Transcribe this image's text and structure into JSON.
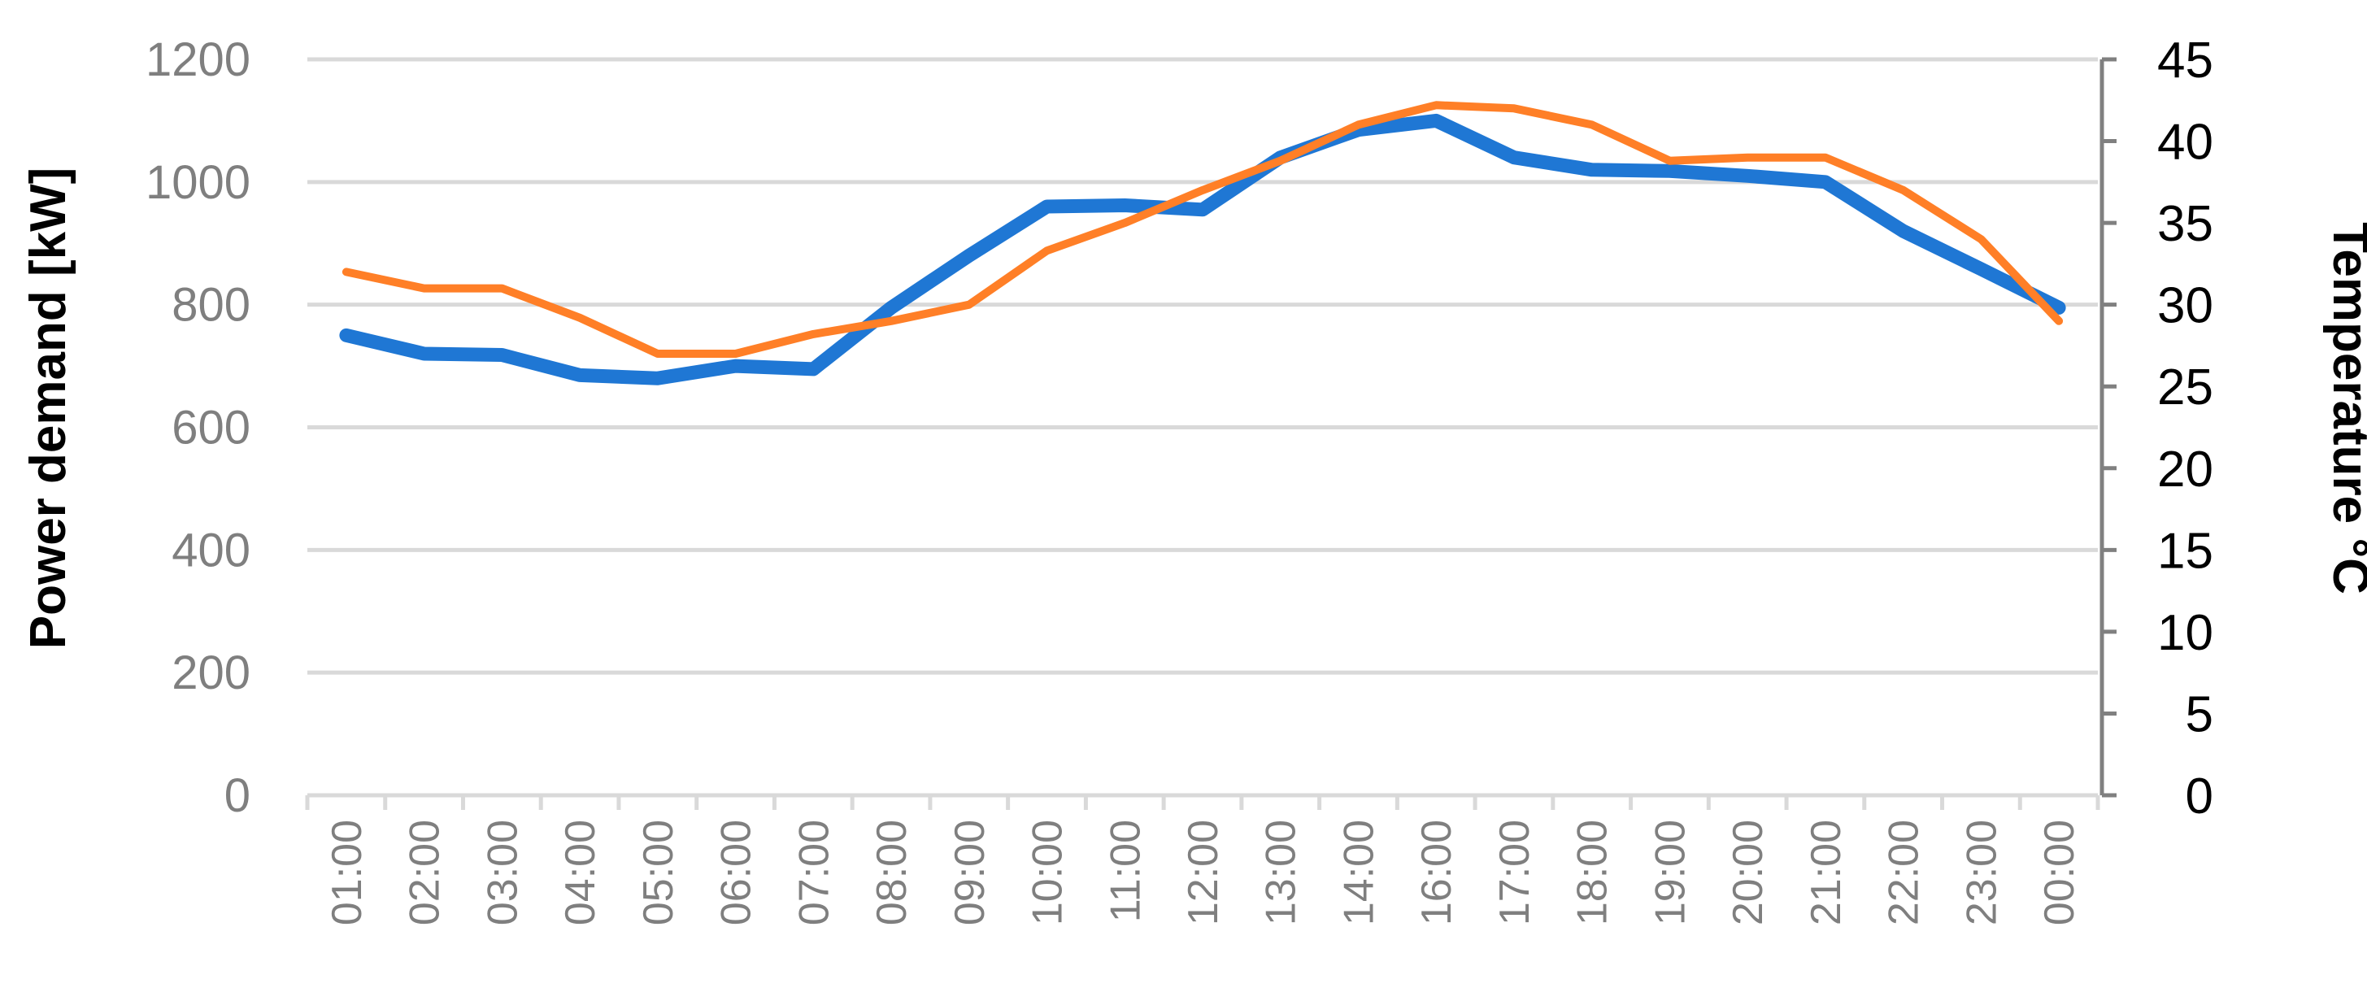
{
  "chart_data": {
    "type": "line",
    "title": "",
    "xlabel": "",
    "ylabel": "Power demand [kW]",
    "y2label": "Temperature °C",
    "ylim": [
      0,
      1200
    ],
    "y2lim": [
      0,
      45
    ],
    "yticks": [
      "0",
      "200",
      "400",
      "600",
      "800",
      "1000",
      "1200"
    ],
    "y2ticks": [
      "0",
      "5",
      "10",
      "15",
      "20",
      "25",
      "30",
      "35",
      "40",
      "45"
    ],
    "grid": true,
    "legend": "none",
    "categories": [
      "01:00",
      "02:00",
      "03:00",
      "04:00",
      "05:00",
      "06:00",
      "07:00",
      "08:00",
      "09:00",
      "10:00",
      "11:00",
      "12:00",
      "13:00",
      "14:00",
      "16:00",
      "17:00",
      "18:00",
      "19:00",
      "20:00",
      "21:00",
      "22:00",
      "23:00",
      "00:00"
    ],
    "series": [
      {
        "axis": "left",
        "color": "#1f77d4",
        "values": [
          750,
          720,
          718,
          685,
          680,
          700,
          695,
          795,
          880,
          960,
          962,
          955,
          1040,
          1085,
          1100,
          1040,
          1020,
          1018,
          1010,
          1000,
          920,
          858,
          795
        ]
      },
      {
        "axis": "right",
        "color": "#ff7f27",
        "values": [
          32,
          31,
          31,
          29.2,
          27,
          27,
          28.2,
          29,
          30,
          33.3,
          35,
          37,
          38.8,
          41,
          42.2,
          42,
          41,
          38.8,
          39,
          39,
          37,
          34,
          29
        ]
      }
    ]
  }
}
